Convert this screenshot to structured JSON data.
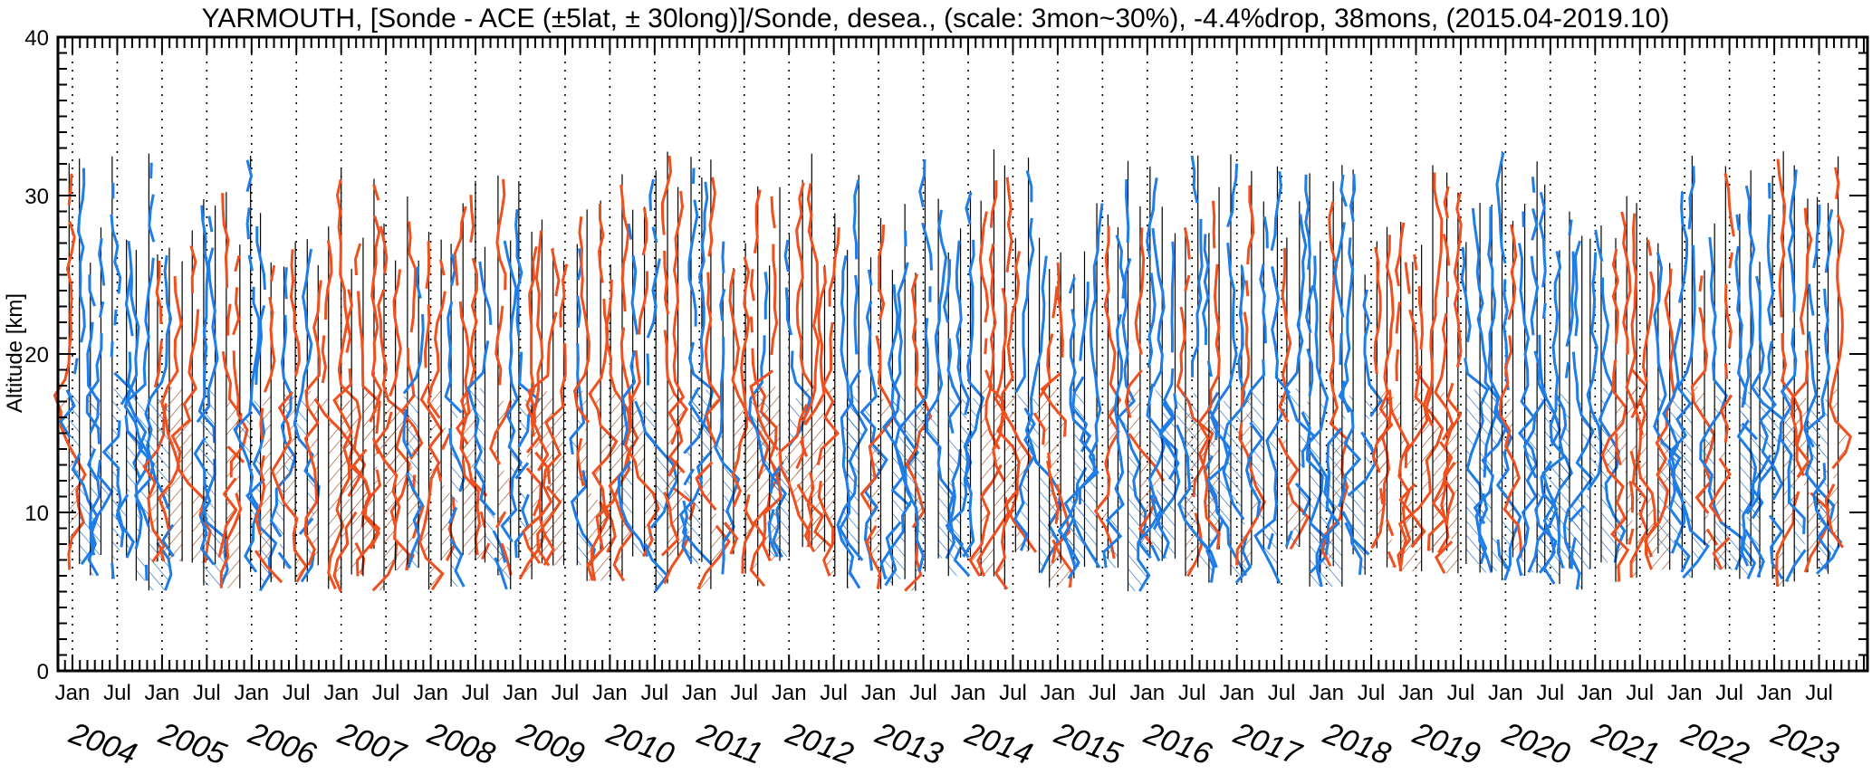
{
  "chart_data": {
    "type": "line",
    "title": "YARMOUTH, [Sonde - ACE (±5lat, ± 30long)]/Sonde, desea., (scale: 3mon~30%),  -4.4%drop,  38mons, (2015.04-2019.10)",
    "ylabel": "Altitude [km]",
    "xlabel": "",
    "ylim": [
      0,
      40
    ],
    "y_ticks": [
      0,
      10,
      20,
      30,
      40
    ],
    "x_start_year": 2004,
    "x_end_year": 2023,
    "x_month_labels": [
      "Jan",
      "Jul",
      "Jan",
      "Jul",
      "Jan",
      "Jul",
      "Jan",
      "Jul",
      "Jan",
      "Jul",
      "Jan",
      "Jul",
      "Jan",
      "Jul",
      "Jan",
      "Jul",
      "Jan",
      "Jul",
      "Jan",
      "Jul",
      "Jan",
      "Jul",
      "Jan",
      "Jul",
      "Jan",
      "Jul",
      "Jan",
      "Jul",
      "Jan",
      "Jul",
      "Jan",
      "Jul",
      "Jan",
      "Jul",
      "Jan",
      "Jul",
      "Jan",
      "Jul",
      "Jan",
      "Jul"
    ],
    "year_labels": [
      "2004",
      "2005",
      "2006",
      "2007",
      "2008",
      "2009",
      "2010",
      "2011",
      "2012",
      "2013",
      "2014",
      "2015",
      "2016",
      "2017",
      "2018",
      "2019",
      "2020",
      "2021",
      "2022",
      "2023"
    ],
    "grid": "vertical dotted at each Jan and Jul",
    "legend": "none",
    "series": [
      {
        "color": "#f0501e",
        "meaning": "positive deviation"
      },
      {
        "color": "#1e7de6",
        "meaning": "negative deviation"
      }
    ],
    "profile_scale": "3mon~30%"
  }
}
